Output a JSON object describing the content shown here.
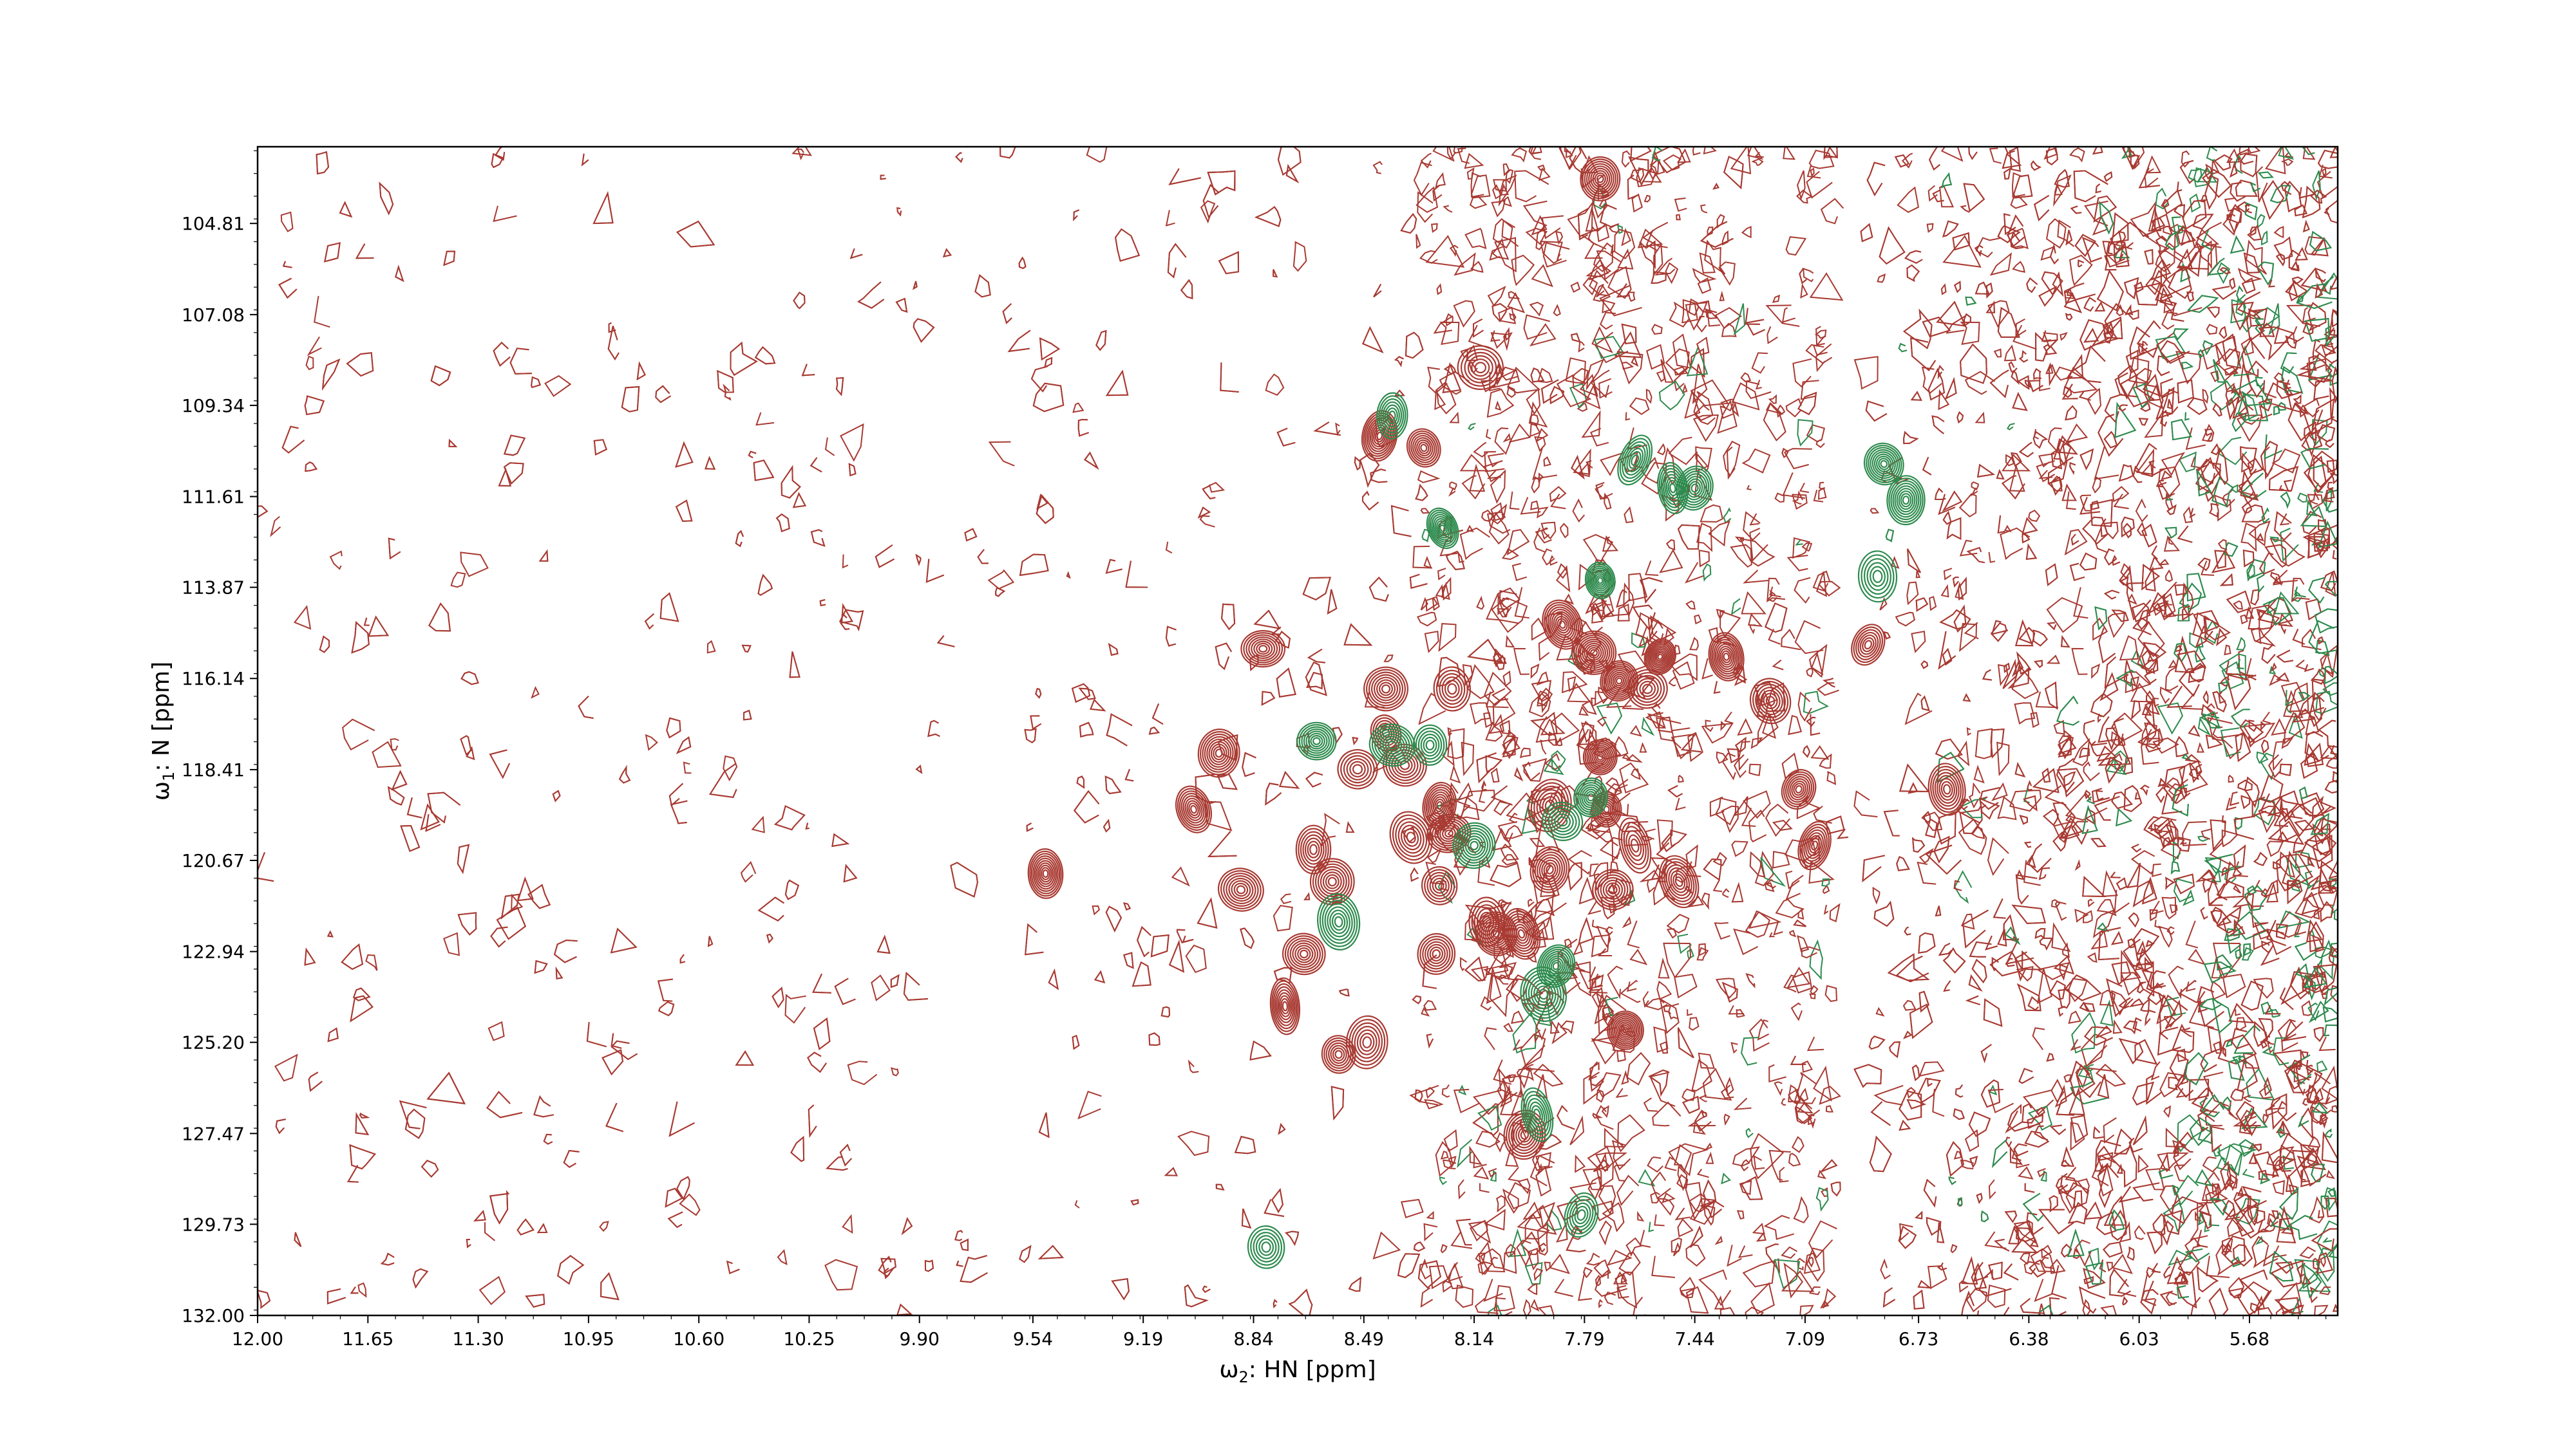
{
  "chart_data": {
    "type": "contour",
    "xlabel_prefix": "ω",
    "xlabel_sub": "2",
    "xlabel_rest": ": HN [ppm]",
    "ylabel_prefix": "ω",
    "ylabel_sub": "1",
    "ylabel_rest": ": N [ppm]",
    "xlim": [
      12.0,
      5.4
    ],
    "ylim": [
      132.0,
      102.9
    ],
    "x_inverted": true,
    "y_inverted": true,
    "x_ticks": [
      "12.00",
      "11.65",
      "11.30",
      "10.95",
      "10.60",
      "10.25",
      "9.90",
      "9.54",
      "9.19",
      "8.84",
      "8.49",
      "8.14",
      "7.79",
      "7.44",
      "7.09",
      "6.73",
      "6.38",
      "6.03",
      "5.68"
    ],
    "y_ticks": [
      "104.81",
      "107.08",
      "109.34",
      "111.61",
      "113.87",
      "116.14",
      "118.41",
      "120.67",
      "122.94",
      "125.20",
      "127.47",
      "129.73",
      "132.00"
    ],
    "series": [
      {
        "color": "#a83a32",
        "sign": "positive"
      },
      {
        "color": "#2e8b4e",
        "sign": "negative"
      }
    ],
    "peaks_positive": [
      [
        7.74,
        103.7
      ],
      [
        8.12,
        108.4
      ],
      [
        8.44,
        110.1
      ],
      [
        8.3,
        110.4
      ],
      [
        8.81,
        115.4
      ],
      [
        7.86,
        114.8
      ],
      [
        7.76,
        115.5
      ],
      [
        7.55,
        115.6
      ],
      [
        7.68,
        116.2
      ],
      [
        7.59,
        116.4
      ],
      [
        7.34,
        115.6
      ],
      [
        6.89,
        115.3
      ],
      [
        7.2,
        116.7
      ],
      [
        8.42,
        116.4
      ],
      [
        8.21,
        116.4
      ],
      [
        8.95,
        118.0
      ],
      [
        8.42,
        117.5
      ],
      [
        8.36,
        118.3
      ],
      [
        8.51,
        118.4
      ],
      [
        7.74,
        118.1
      ],
      [
        7.11,
        118.9
      ],
      [
        6.64,
        118.9
      ],
      [
        9.03,
        119.4
      ],
      [
        8.65,
        120.4
      ],
      [
        8.34,
        120.1
      ],
      [
        8.22,
        120.0
      ],
      [
        8.25,
        119.3
      ],
      [
        7.72,
        119.4
      ],
      [
        7.9,
        119.3
      ],
      [
        7.63,
        120.3
      ],
      [
        7.9,
        120.9
      ],
      [
        8.59,
        121.2
      ],
      [
        8.25,
        121.3
      ],
      [
        7.49,
        121.2
      ],
      [
        9.5,
        121.0
      ],
      [
        8.88,
        121.4
      ],
      [
        7.06,
        120.3
      ],
      [
        8.68,
        123.0
      ],
      [
        8.26,
        123.0
      ],
      [
        8.07,
        122.5
      ],
      [
        7.99,
        122.5
      ],
      [
        8.74,
        124.3
      ],
      [
        8.48,
        125.2
      ],
      [
        7.66,
        124.9
      ],
      [
        8.57,
        125.5
      ],
      [
        7.98,
        127.5
      ],
      [
        7.7,
        121.4
      ],
      [
        8.1,
        122.2
      ]
    ],
    "peaks_negative": [
      [
        8.4,
        109.6
      ],
      [
        8.24,
        112.4
      ],
      [
        7.74,
        113.7
      ],
      [
        7.63,
        110.7
      ],
      [
        7.51,
        111.4
      ],
      [
        7.44,
        111.4
      ],
      [
        6.84,
        110.8
      ],
      [
        6.77,
        111.7
      ],
      [
        6.86,
        113.6
      ],
      [
        8.28,
        117.8
      ],
      [
        7.77,
        119.1
      ],
      [
        7.86,
        119.7
      ],
      [
        8.64,
        117.7
      ],
      [
        8.4,
        117.8
      ],
      [
        8.57,
        122.2
      ],
      [
        7.88,
        123.3
      ],
      [
        7.92,
        124.0
      ],
      [
        7.94,
        127.0
      ],
      [
        8.8,
        130.3
      ],
      [
        7.8,
        129.5
      ],
      [
        8.14,
        120.3
      ]
    ]
  }
}
